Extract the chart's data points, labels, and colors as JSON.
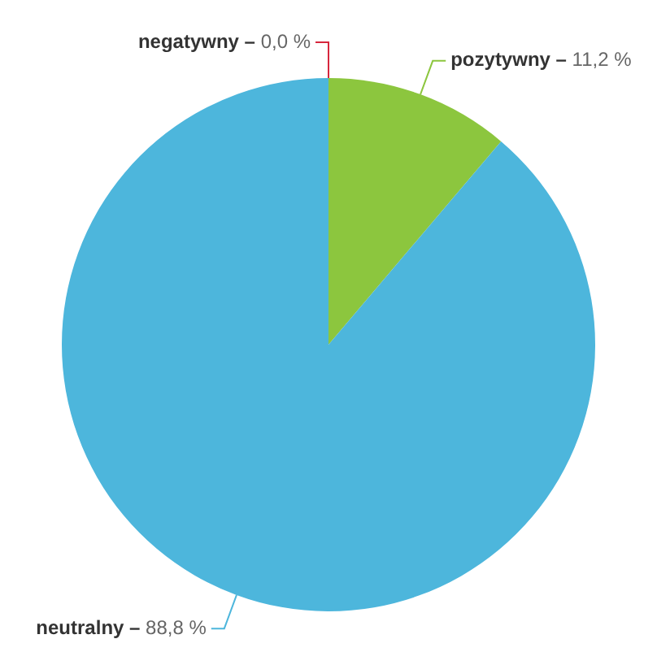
{
  "chart_data": {
    "type": "pie",
    "categories": [
      "negatywny –",
      "pozytywny –",
      "neutralny –"
    ],
    "values": [
      0.0,
      11.2,
      88.8
    ],
    "colors": [
      "#d7263d",
      "#8cc63e",
      "#4db6dc"
    ],
    "value_labels": [
      "0,0 %",
      "11,2 %",
      "88,8 %"
    ],
    "legend": false
  }
}
